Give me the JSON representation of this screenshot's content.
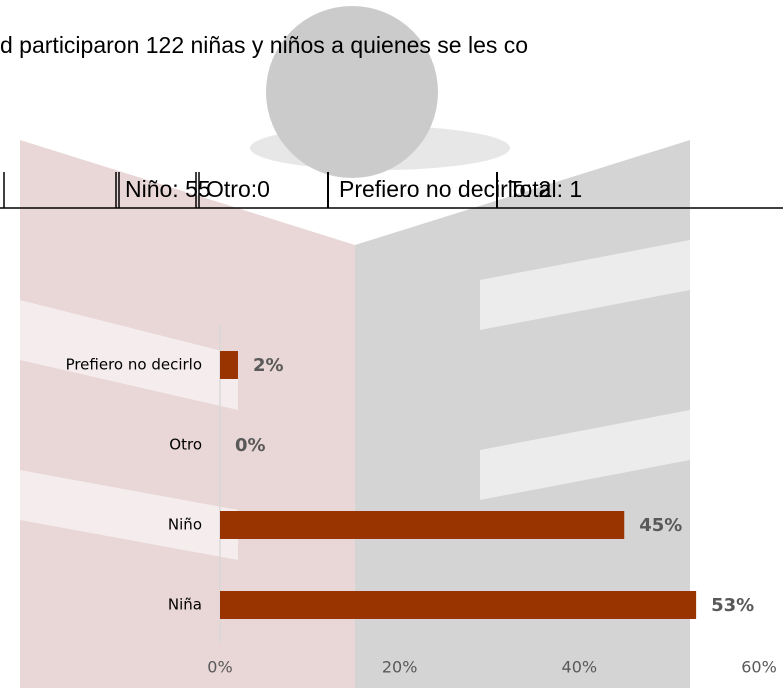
{
  "paragraph": "d participaron 122 niñas y niños a quienes se les co",
  "table": {
    "cells": [
      "Niño: 55",
      "Otro:0",
      "Prefiero no decirlo: 2",
      "Total: 1"
    ]
  },
  "chart_data": {
    "type": "barh",
    "categories": [
      "Prefiero no decirlo",
      "Otro",
      "Niño",
      "Niña"
    ],
    "values": [
      2,
      0,
      45,
      53
    ],
    "value_labels": [
      "2%",
      "0%",
      "45%",
      "53%"
    ],
    "color": "#993300",
    "xlim": [
      0,
      60
    ],
    "xticks": [
      {
        "value": 0,
        "label": "0%"
      },
      {
        "value": 20,
        "label": "20%"
      },
      {
        "value": 40,
        "label": "40%"
      },
      {
        "value": 60,
        "label": "60%"
      }
    ]
  }
}
